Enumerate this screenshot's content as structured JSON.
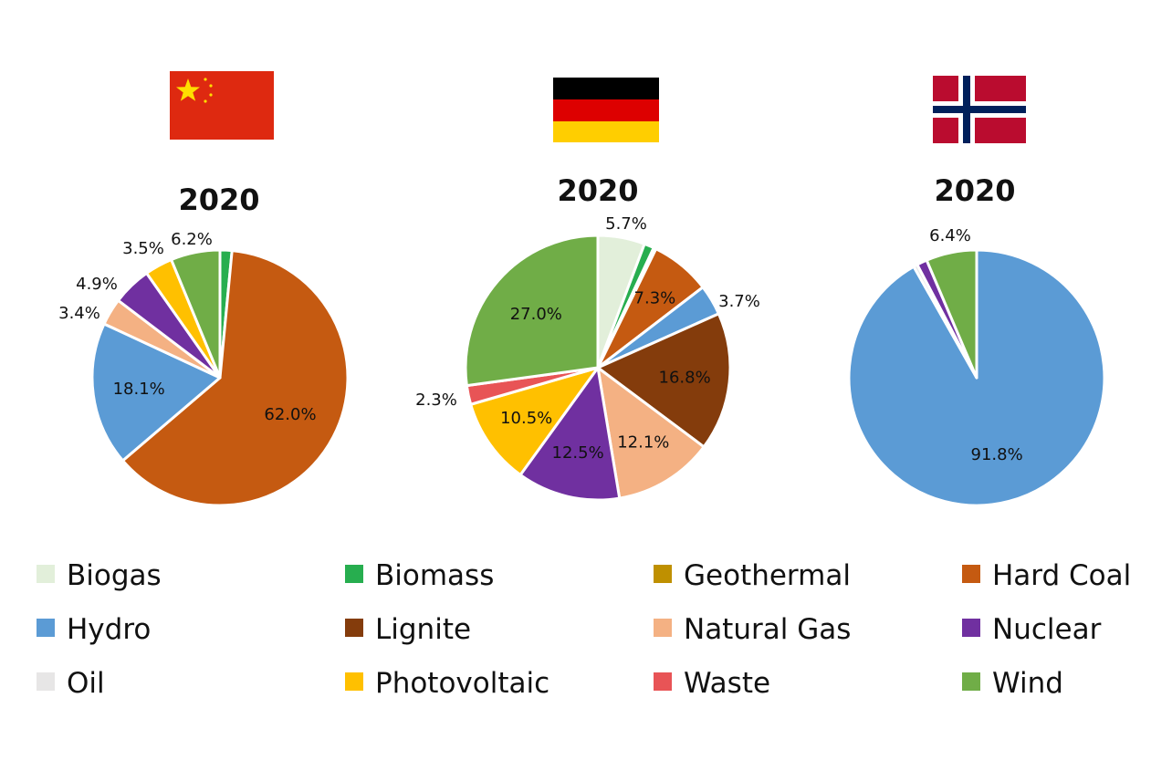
{
  "colors": {
    "Biogas": "#e2efda",
    "Biomass": "#27ae4f",
    "Geothermal": "#bf9000",
    "Hard Coal": "#c55a11",
    "Hydro": "#5b9bd5",
    "Lignite": "#843c0c",
    "Natural Gas": "#f4b183",
    "Nuclear": "#7030a0",
    "Oil": "#e7e6e6",
    "Photovoltaic": "#ffc000",
    "Waste": "#e85456",
    "Wind": "#70ad47"
  },
  "flags": [
    {
      "country": "China",
      "icon": "china-flag-icon"
    },
    {
      "country": "Germany",
      "icon": "germany-flag-icon"
    },
    {
      "country": "Norway",
      "icon": "norway-flag-icon"
    }
  ],
  "chart_data": [
    {
      "type": "pie",
      "title": "2020",
      "slices": [
        {
          "category": "Biomass",
          "value": 1.5,
          "label": ""
        },
        {
          "category": "Hard Coal",
          "value": 62.0,
          "label": "62.0%"
        },
        {
          "category": "Hydro",
          "value": 18.1,
          "label": "18.1%"
        },
        {
          "category": "Natural Gas",
          "value": 3.4,
          "label": "3.4%"
        },
        {
          "category": "Nuclear",
          "value": 4.9,
          "label": "4.9%"
        },
        {
          "category": "Photovoltaic",
          "value": 3.5,
          "label": "3.5%"
        },
        {
          "category": "Wind",
          "value": 6.2,
          "label": "6.2%"
        }
      ]
    },
    {
      "type": "pie",
      "title": "2020",
      "slices": [
        {
          "category": "Biogas",
          "value": 5.7,
          "label": "5.7%"
        },
        {
          "category": "Biomass",
          "value": 1.2,
          "label": ""
        },
        {
          "category": "Geothermal",
          "value": 0.3,
          "label": ""
        },
        {
          "category": "Hard Coal",
          "value": 7.3,
          "label": "7.3%"
        },
        {
          "category": "Hydro",
          "value": 3.7,
          "label": "3.7%"
        },
        {
          "category": "Lignite",
          "value": 16.8,
          "label": "16.8%"
        },
        {
          "category": "Natural Gas",
          "value": 12.1,
          "label": "12.1%"
        },
        {
          "category": "Nuclear",
          "value": 12.5,
          "label": "12.5%"
        },
        {
          "category": "Photovoltaic",
          "value": 10.5,
          "label": "10.5%"
        },
        {
          "category": "Waste",
          "value": 2.3,
          "label": "2.3%"
        },
        {
          "category": "Wind",
          "value": 27.0,
          "label": "27.0%"
        }
      ]
    },
    {
      "type": "pie",
      "title": "2020",
      "slices": [
        {
          "category": "Hydro",
          "value": 91.8,
          "label": "91.8%"
        },
        {
          "category": "Oil",
          "value": 0.5,
          "label": ""
        },
        {
          "category": "Nuclear",
          "value": 1.3,
          "label": ""
        },
        {
          "category": "Wind",
          "value": 6.4,
          "label": "6.4%"
        }
      ]
    }
  ],
  "legend": {
    "items": [
      "Biogas",
      "Biomass",
      "Geothermal",
      "Hard Coal",
      "Hydro",
      "Lignite",
      "Natural Gas",
      "Nuclear",
      "Oil",
      "Photovoltaic",
      "Waste",
      "Wind"
    ],
    "placement": "bottom",
    "columns": 4
  }
}
